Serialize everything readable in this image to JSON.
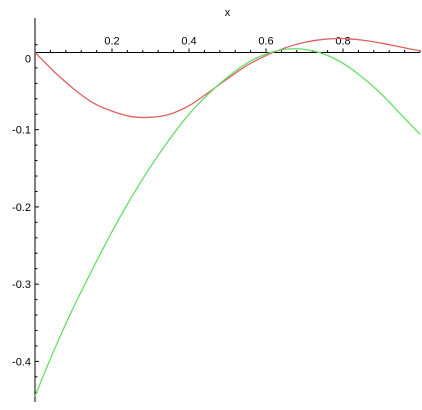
{
  "chart_data": {
    "type": "line",
    "title": "",
    "xlabel": "x",
    "ylabel": "",
    "xlim": [
      0,
      1
    ],
    "ylim": [
      -0.45,
      0.02
    ],
    "grid": false,
    "x_ticks": [
      0.2,
      0.4,
      0.6,
      0.8
    ],
    "x_tick_labels": [
      "0.2",
      "0.4",
      "0.6",
      "0.8"
    ],
    "y_ticks": [
      0,
      -0.1,
      -0.2,
      -0.3,
      -0.4
    ],
    "y_tick_labels": [
      "0",
      "-0.1",
      "-0.2",
      "-0.3",
      "-0.4"
    ],
    "series": [
      {
        "color": "#e06060",
        "x": [
          0,
          0.05,
          0.1,
          0.15,
          0.2,
          0.25,
          0.3,
          0.35,
          0.4,
          0.45,
          0.5,
          0.55,
          0.6,
          0.65,
          0.7,
          0.75,
          0.8,
          0.85,
          0.9,
          0.95,
          1.0
        ],
        "y": [
          0,
          -0.025,
          -0.047,
          -0.065,
          -0.076,
          -0.083,
          -0.084,
          -0.08,
          -0.069,
          -0.052,
          -0.034,
          -0.017,
          -0.004,
          0.006,
          0.013,
          0.017,
          0.018,
          0.016,
          0.012,
          0.007,
          0.002
        ]
      },
      {
        "color": "#66dd66",
        "x": [
          0,
          0.05,
          0.1,
          0.15,
          0.2,
          0.25,
          0.3,
          0.35,
          0.4,
          0.45,
          0.5,
          0.55,
          0.6,
          0.65,
          0.7,
          0.75,
          0.8,
          0.85,
          0.9,
          0.95,
          1.0
        ],
        "y": [
          -0.445,
          -0.385,
          -0.33,
          -0.28,
          -0.232,
          -0.188,
          -0.148,
          -0.112,
          -0.08,
          -0.054,
          -0.032,
          -0.014,
          -0.002,
          0.004,
          0.004,
          -0.002,
          -0.014,
          -0.032,
          -0.054,
          -0.08,
          -0.106
        ]
      }
    ]
  }
}
